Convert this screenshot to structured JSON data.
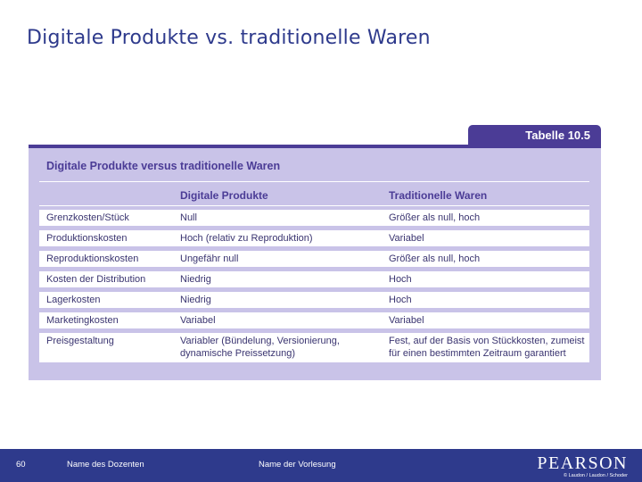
{
  "slide": {
    "title": "Digitale Produkte vs. traditionelle Waren"
  },
  "table": {
    "tab_label": "Tabelle 10.5",
    "title": "Digitale Produkte versus traditionelle Waren",
    "columns": [
      "",
      "Digitale Produkte",
      "Traditionelle Waren"
    ],
    "rows": [
      [
        "Grenzkosten/Stück",
        "Null",
        "Größer als null, hoch"
      ],
      [
        "Produktionskosten",
        "Hoch (relativ zu Reproduktion)",
        "Variabel"
      ],
      [
        "Reproduktionskosten",
        "Ungefähr null",
        "Größer als null, hoch"
      ],
      [
        "Kosten der Distribution",
        "Niedrig",
        "Hoch"
      ],
      [
        "Lagerkosten",
        "Niedrig",
        "Hoch"
      ],
      [
        "Marketingkosten",
        "Variabel",
        "Variabel"
      ],
      [
        "Preisgestaltung",
        "Variabler (Bündelung, Versionierung, dynamische Preissetzung)",
        "Fest, auf der Basis von Stückkosten, zumeist für einen bestimmten Zeitraum garantiert"
      ]
    ],
    "colors": {
      "accent": "#4b3c96",
      "panel": "#c9c3e8"
    }
  },
  "footer": {
    "page_number": "60",
    "lecturer": "Name des Dozenten",
    "lecture": "Name der Vorlesung",
    "logo": "PEARSON",
    "copyright": "© Laudon / Laudon / Schoder",
    "color": "#2e3a8c"
  }
}
